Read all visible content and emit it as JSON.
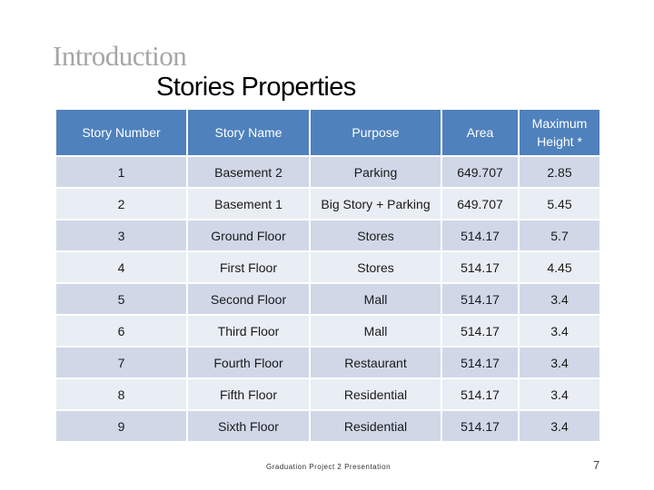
{
  "slide": {
    "section": "Introduction",
    "title": "Stories Properties",
    "footer": "Graduation Project 2 Presentation",
    "page_number": "7"
  },
  "table": {
    "headers": [
      "Story Number",
      "Story Name",
      "Purpose",
      "Area",
      "Maximum Height *"
    ],
    "rows": [
      [
        "1",
        "Basement 2",
        "Parking",
        "649.707",
        "2.85"
      ],
      [
        "2",
        "Basement 1",
        "Big Story + Parking",
        "649.707",
        "5.45"
      ],
      [
        "3",
        "Ground Floor",
        "Stores",
        "514.17",
        "5.7"
      ],
      [
        "4",
        "First Floor",
        "Stores",
        "514.17",
        "4.45"
      ],
      [
        "5",
        "Second Floor",
        "Mall",
        "514.17",
        "3.4"
      ],
      [
        "6",
        "Third Floor",
        "Mall",
        "514.17",
        "3.4"
      ],
      [
        "7",
        "Fourth Floor",
        "Restaurant",
        "514.17",
        "3.4"
      ],
      [
        "8",
        "Fifth Floor",
        "Residential",
        "514.17",
        "3.4"
      ],
      [
        "9",
        "Sixth Floor",
        "Residential",
        "514.17",
        "3.4"
      ]
    ]
  },
  "colors": {
    "header_bg": "#4f81bd",
    "row_odd_bg": "#d0d8e8",
    "row_even_bg": "#e9edf4",
    "section_text": "#a6a6a6"
  }
}
